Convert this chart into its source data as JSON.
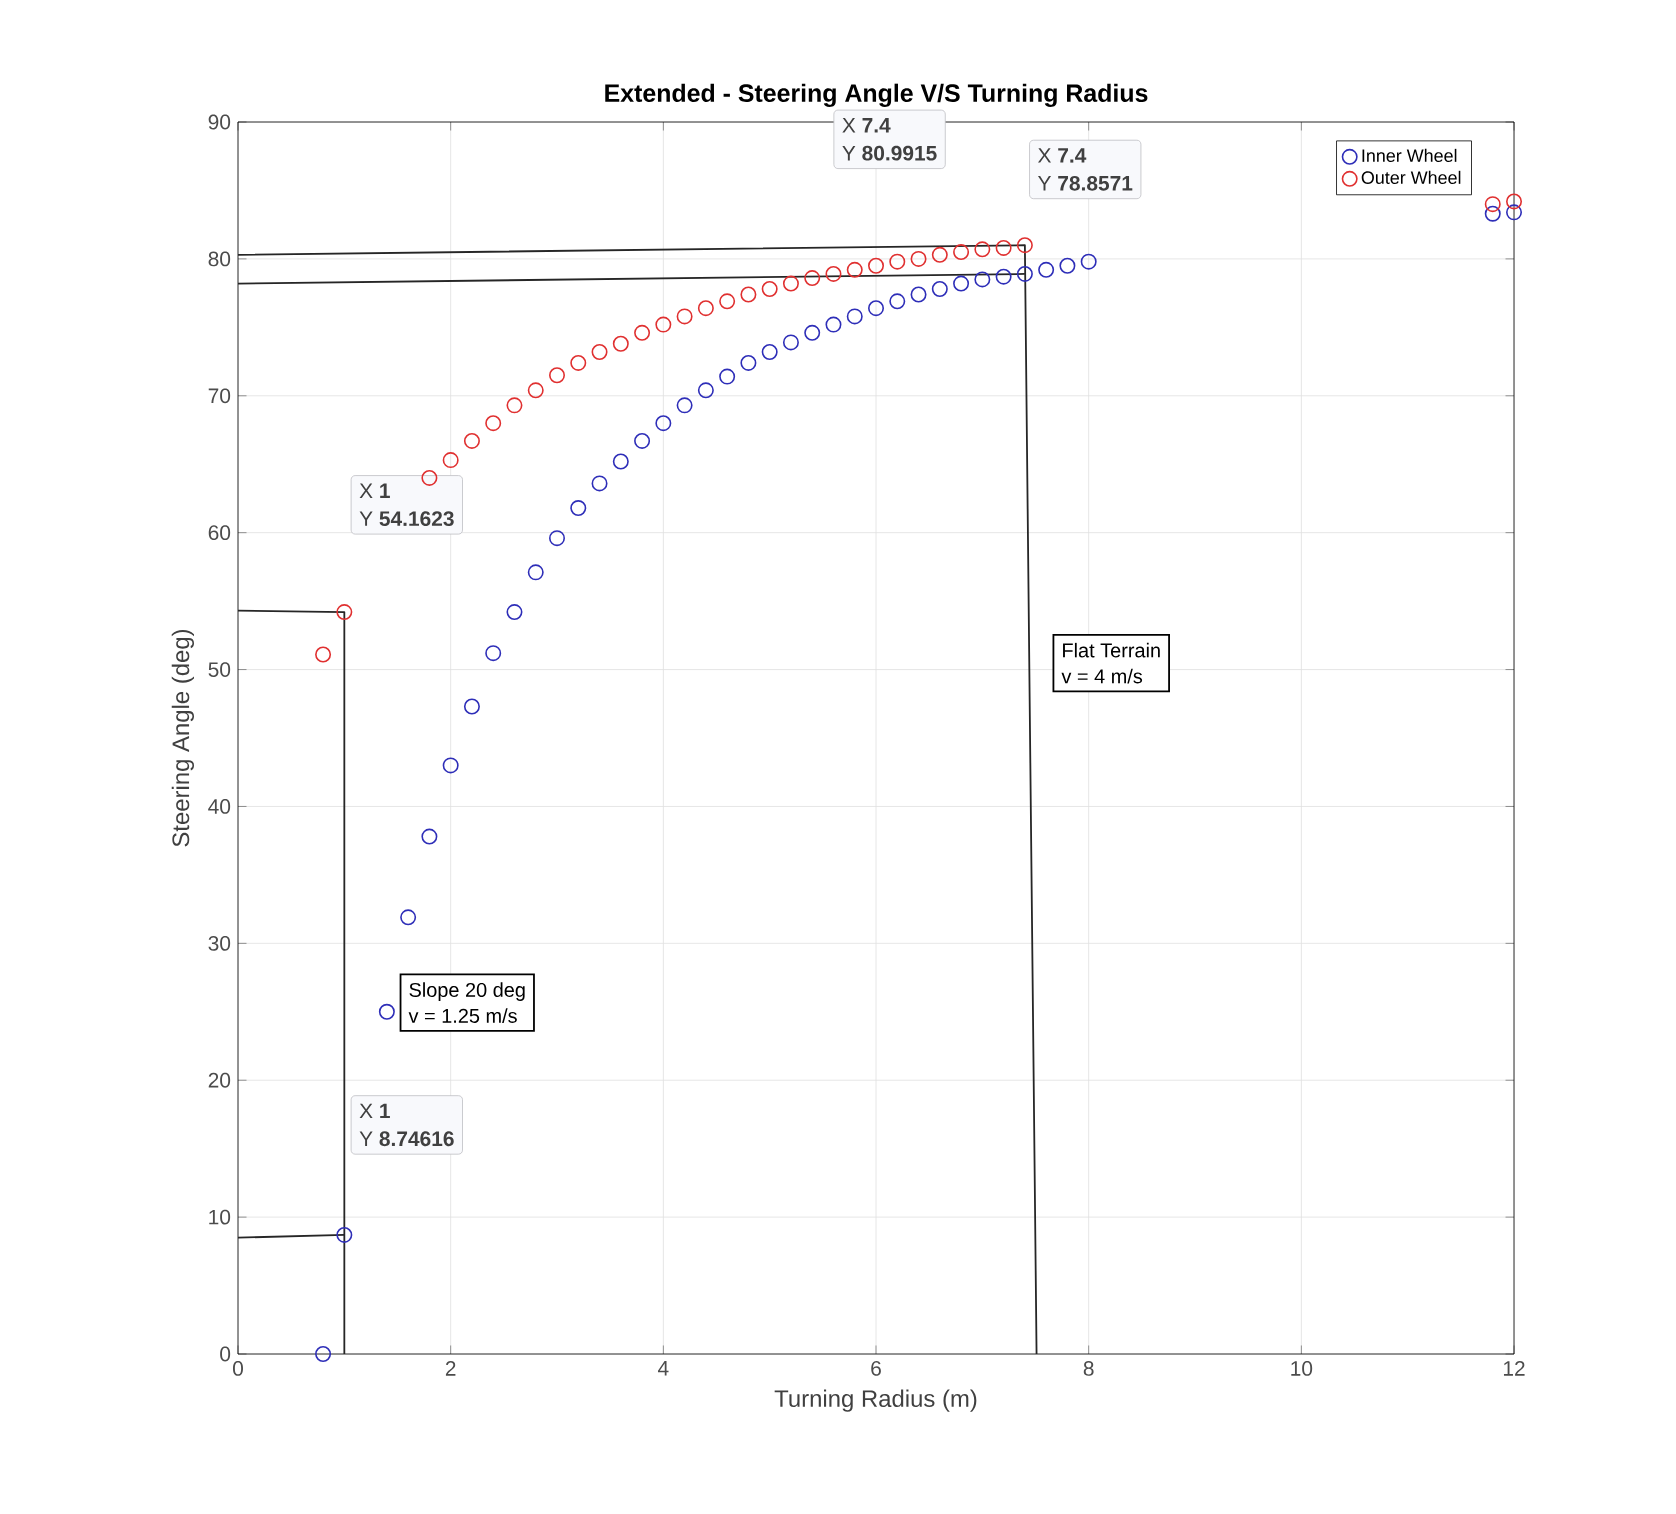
{
  "chart_data": {
    "type": "scatter",
    "title": "Extended - Steering Angle V/S Turning Radius",
    "xlabel": "Turning Radius (m)",
    "ylabel": "Steering Angle (deg)",
    "xlim": [
      0,
      12
    ],
    "ylim": [
      0,
      90
    ],
    "xticks": [
      0,
      2,
      4,
      6,
      8,
      10,
      12
    ],
    "yticks": [
      0,
      10,
      20,
      30,
      40,
      50,
      60,
      70,
      80,
      90
    ],
    "grid": true,
    "legend": "top right",
    "marker": "circle",
    "series": [
      {
        "name": "Inner Wheel",
        "color": "#2e2eb8",
        "x": [
          0.8,
          1.0,
          1.4,
          1.6,
          1.8,
          2.0,
          2.2,
          2.4,
          2.6,
          2.8,
          3.0,
          3.2,
          3.4,
          3.6,
          3.8,
          4.0,
          4.2,
          4.4,
          4.6,
          4.8,
          5.0,
          5.2,
          5.4,
          5.6,
          5.8,
          6.0,
          6.2,
          6.4,
          6.6,
          6.8,
          7.0,
          7.2,
          7.4,
          7.6,
          7.8,
          8.0,
          11.8,
          12.0
        ],
        "values": [
          0,
          8.7,
          25.0,
          31.9,
          37.8,
          43.0,
          47.3,
          51.2,
          54.2,
          57.1,
          59.6,
          61.8,
          63.6,
          65.2,
          66.7,
          68.0,
          69.3,
          70.4,
          71.4,
          72.4,
          73.2,
          73.9,
          74.6,
          75.2,
          75.8,
          76.4,
          76.9,
          77.4,
          77.8,
          78.2,
          78.5,
          78.7,
          78.9,
          79.2,
          79.5,
          79.8,
          83.3,
          83.4
        ]
      },
      {
        "name": "Outer Wheel",
        "color": "#e03030",
        "x": [
          0.8,
          1.0,
          1.8,
          2.0,
          2.2,
          2.4,
          2.6,
          2.8,
          3.0,
          3.2,
          3.4,
          3.6,
          3.8,
          4.0,
          4.2,
          4.4,
          4.6,
          4.8,
          5.0,
          5.2,
          5.4,
          5.6,
          5.8,
          6.0,
          6.2,
          6.4,
          6.6,
          6.8,
          7.0,
          7.2,
          7.4,
          11.8,
          12.0
        ],
        "values": [
          51.1,
          54.2,
          64.0,
          65.3,
          66.7,
          68.0,
          69.3,
          70.4,
          71.5,
          72.4,
          73.2,
          73.8,
          74.6,
          75.2,
          75.8,
          76.4,
          76.9,
          77.4,
          77.8,
          78.2,
          78.6,
          78.9,
          79.2,
          79.5,
          79.8,
          80.0,
          80.3,
          80.5,
          80.7,
          80.8,
          81.0,
          84.0,
          84.2
        ]
      },
      {
        "type": "line",
        "marker": "none",
        "color": "#262626",
        "x": [
          0,
          7.4,
          7.51
        ],
        "values": [
          80.3,
          81.0,
          0
        ]
      },
      {
        "type": "line",
        "marker": "none",
        "color": "#262626",
        "x": [
          0,
          7.4
        ],
        "values": [
          78.2,
          78.9
        ]
      },
      {
        "type": "line",
        "marker": "none",
        "color": "#262626",
        "x": [
          0,
          1,
          1
        ],
        "values": [
          54.3,
          54.2,
          0
        ]
      },
      {
        "type": "line",
        "marker": "none",
        "color": "#262626",
        "x": [
          0,
          1
        ],
        "values": [
          8.5,
          8.7
        ]
      }
    ],
    "annotations": [
      "X **1**",
      "Y **54.1623**",
      "X **1**",
      "Y **8.74616**",
      "X **7.4**",
      "Y **80.9915**",
      "X **7.4**",
      "Y **78.8571**",
      "Slope 20 deg",
      "v = 1.25 m/s",
      "Flat Terrain",
      "v = 4 m/s"
    ]
  }
}
